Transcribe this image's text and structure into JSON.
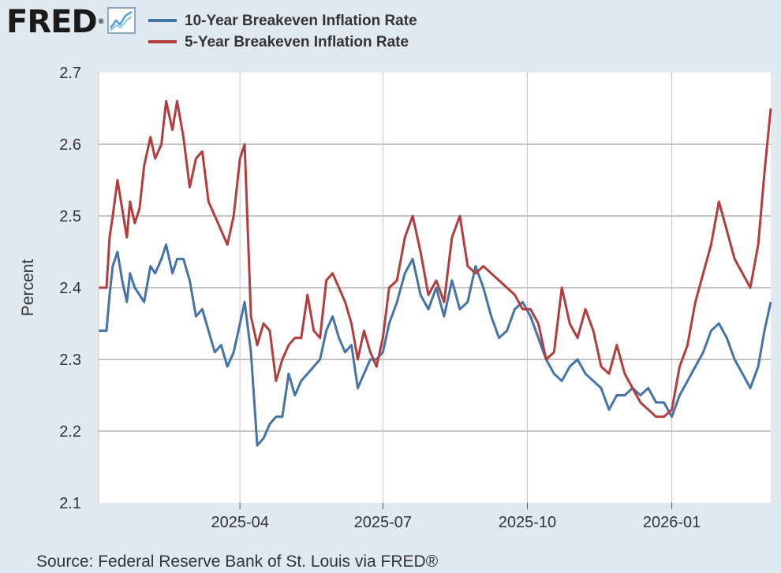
{
  "logo": {
    "text": "FRED",
    "registered_mark": "®"
  },
  "source": "Source: Federal Reserve Bank of St. Louis via FRED®",
  "chart_data": {
    "type": "line",
    "title": "",
    "ylabel": "Percent",
    "xlabel": "",
    "ylim": [
      2.1,
      2.7
    ],
    "yticks": [
      2.1,
      2.2,
      2.3,
      2.4,
      2.5,
      2.6,
      2.7
    ],
    "ytick_labels": [
      "2.1",
      "2.2",
      "2.3",
      "2.4",
      "2.5",
      "2.6",
      "2.7"
    ],
    "grid": true,
    "legend_position": "top-left",
    "x_start_date": "2025-01-01",
    "x_end_date": "2026-03-05",
    "xticks": [
      {
        "label": "2025-04",
        "date": "2025-04-01"
      },
      {
        "label": "2025-07",
        "date": "2025-07-01"
      },
      {
        "label": "2025-10",
        "date": "2025-10-01"
      },
      {
        "label": "2026-01",
        "date": "2026-01-01"
      }
    ],
    "series": [
      {
        "name": "10-Year Breakeven Inflation Rate",
        "color": "#4572a7",
        "x": [
          "2025-01-01",
          "2025-01-06",
          "2025-01-08",
          "2025-01-10",
          "2025-01-13",
          "2025-01-16",
          "2025-01-19",
          "2025-01-21",
          "2025-01-24",
          "2025-01-27",
          "2025-01-30",
          "2025-02-03",
          "2025-02-06",
          "2025-02-10",
          "2025-02-13",
          "2025-02-17",
          "2025-02-20",
          "2025-02-24",
          "2025-02-28",
          "2025-03-04",
          "2025-03-08",
          "2025-03-12",
          "2025-03-16",
          "2025-03-20",
          "2025-03-24",
          "2025-03-28",
          "2025-04-01",
          "2025-04-04",
          "2025-04-08",
          "2025-04-12",
          "2025-04-16",
          "2025-04-20",
          "2025-04-24",
          "2025-04-28",
          "2025-05-02",
          "2025-05-06",
          "2025-05-10",
          "2025-05-14",
          "2025-05-18",
          "2025-05-22",
          "2025-05-26",
          "2025-05-30",
          "2025-06-03",
          "2025-06-07",
          "2025-06-11",
          "2025-06-15",
          "2025-06-19",
          "2025-06-23",
          "2025-06-27",
          "2025-07-01",
          "2025-07-05",
          "2025-07-10",
          "2025-07-15",
          "2025-07-20",
          "2025-07-25",
          "2025-07-30",
          "2025-08-04",
          "2025-08-09",
          "2025-08-14",
          "2025-08-19",
          "2025-08-24",
          "2025-08-29",
          "2025-09-03",
          "2025-09-08",
          "2025-09-13",
          "2025-09-18",
          "2025-09-23",
          "2025-09-28",
          "2025-10-03",
          "2025-10-08",
          "2025-10-13",
          "2025-10-18",
          "2025-10-23",
          "2025-10-28",
          "2025-11-02",
          "2025-11-07",
          "2025-11-12",
          "2025-11-17",
          "2025-11-22",
          "2025-11-27",
          "2025-12-02",
          "2025-12-07",
          "2025-12-12",
          "2025-12-17",
          "2025-12-22",
          "2025-12-27",
          "2026-01-01",
          "2026-01-06",
          "2026-01-11",
          "2026-01-16",
          "2026-01-21",
          "2026-01-26",
          "2026-01-31",
          "2026-02-05",
          "2026-02-10",
          "2026-02-15",
          "2026-02-20",
          "2026-02-25",
          "2026-03-01",
          "2026-03-05"
        ],
        "values": [
          2.34,
          2.34,
          2.39,
          2.43,
          2.45,
          2.41,
          2.38,
          2.42,
          2.4,
          2.39,
          2.38,
          2.43,
          2.42,
          2.44,
          2.46,
          2.42,
          2.44,
          2.44,
          2.41,
          2.36,
          2.37,
          2.34,
          2.31,
          2.32,
          2.29,
          2.31,
          2.35,
          2.38,
          2.31,
          2.18,
          2.19,
          2.21,
          2.22,
          2.22,
          2.28,
          2.25,
          2.27,
          2.28,
          2.29,
          2.3,
          2.34,
          2.36,
          2.33,
          2.31,
          2.32,
          2.26,
          2.28,
          2.3,
          2.3,
          2.31,
          2.35,
          2.38,
          2.42,
          2.44,
          2.39,
          2.37,
          2.4,
          2.36,
          2.41,
          2.37,
          2.38,
          2.43,
          2.4,
          2.36,
          2.33,
          2.34,
          2.37,
          2.38,
          2.36,
          2.33,
          2.3,
          2.28,
          2.27,
          2.29,
          2.3,
          2.28,
          2.27,
          2.26,
          2.23,
          2.25,
          2.25,
          2.26,
          2.25,
          2.26,
          2.24,
          2.24,
          2.22,
          2.25,
          2.27,
          2.29,
          2.31,
          2.34,
          2.35,
          2.33,
          2.3,
          2.28,
          2.26,
          2.29,
          2.34,
          2.38
        ]
      },
      {
        "name": "5-Year Breakeven Inflation Rate",
        "color": "#b33c3c",
        "x": [
          "2025-01-01",
          "2025-01-06",
          "2025-01-08",
          "2025-01-10",
          "2025-01-13",
          "2025-01-16",
          "2025-01-19",
          "2025-01-21",
          "2025-01-24",
          "2025-01-27",
          "2025-01-30",
          "2025-02-03",
          "2025-02-06",
          "2025-02-10",
          "2025-02-13",
          "2025-02-17",
          "2025-02-20",
          "2025-02-24",
          "2025-02-28",
          "2025-03-04",
          "2025-03-08",
          "2025-03-12",
          "2025-03-16",
          "2025-03-20",
          "2025-03-24",
          "2025-03-28",
          "2025-04-01",
          "2025-04-04",
          "2025-04-08",
          "2025-04-12",
          "2025-04-16",
          "2025-04-20",
          "2025-04-24",
          "2025-04-28",
          "2025-05-02",
          "2025-05-06",
          "2025-05-10",
          "2025-05-14",
          "2025-05-18",
          "2025-05-22",
          "2025-05-26",
          "2025-05-30",
          "2025-06-03",
          "2025-06-07",
          "2025-06-11",
          "2025-06-15",
          "2025-06-19",
          "2025-06-23",
          "2025-06-27",
          "2025-07-01",
          "2025-07-05",
          "2025-07-10",
          "2025-07-15",
          "2025-07-20",
          "2025-07-25",
          "2025-07-30",
          "2025-08-04",
          "2025-08-09",
          "2025-08-14",
          "2025-08-19",
          "2025-08-24",
          "2025-08-29",
          "2025-09-03",
          "2025-09-08",
          "2025-09-13",
          "2025-09-18",
          "2025-09-23",
          "2025-09-28",
          "2025-10-03",
          "2025-10-08",
          "2025-10-13",
          "2025-10-18",
          "2025-10-23",
          "2025-10-28",
          "2025-11-02",
          "2025-11-07",
          "2025-11-12",
          "2025-11-17",
          "2025-11-22",
          "2025-11-27",
          "2025-12-02",
          "2025-12-07",
          "2025-12-12",
          "2025-12-17",
          "2025-12-22",
          "2025-12-27",
          "2026-01-01",
          "2026-01-06",
          "2026-01-11",
          "2026-01-16",
          "2026-01-21",
          "2026-01-26",
          "2026-01-31",
          "2026-02-05",
          "2026-02-10",
          "2026-02-15",
          "2026-02-20",
          "2026-02-25",
          "2026-03-01",
          "2026-03-05"
        ],
        "values": [
          2.4,
          2.4,
          2.47,
          2.5,
          2.55,
          2.51,
          2.47,
          2.52,
          2.49,
          2.51,
          2.57,
          2.61,
          2.58,
          2.6,
          2.66,
          2.62,
          2.66,
          2.61,
          2.54,
          2.58,
          2.59,
          2.52,
          2.5,
          2.48,
          2.46,
          2.5,
          2.58,
          2.6,
          2.36,
          2.32,
          2.35,
          2.34,
          2.27,
          2.3,
          2.32,
          2.33,
          2.33,
          2.39,
          2.34,
          2.33,
          2.41,
          2.42,
          2.4,
          2.38,
          2.35,
          2.3,
          2.34,
          2.31,
          2.29,
          2.33,
          2.4,
          2.41,
          2.47,
          2.5,
          2.45,
          2.39,
          2.41,
          2.38,
          2.47,
          2.5,
          2.43,
          2.42,
          2.43,
          2.42,
          2.41,
          2.4,
          2.39,
          2.37,
          2.37,
          2.35,
          2.3,
          2.31,
          2.4,
          2.35,
          2.33,
          2.37,
          2.34,
          2.29,
          2.28,
          2.32,
          2.28,
          2.26,
          2.24,
          2.23,
          2.22,
          2.22,
          2.23,
          2.29,
          2.32,
          2.38,
          2.42,
          2.46,
          2.52,
          2.48,
          2.44,
          2.42,
          2.4,
          2.46,
          2.56,
          2.65
        ]
      }
    ]
  }
}
